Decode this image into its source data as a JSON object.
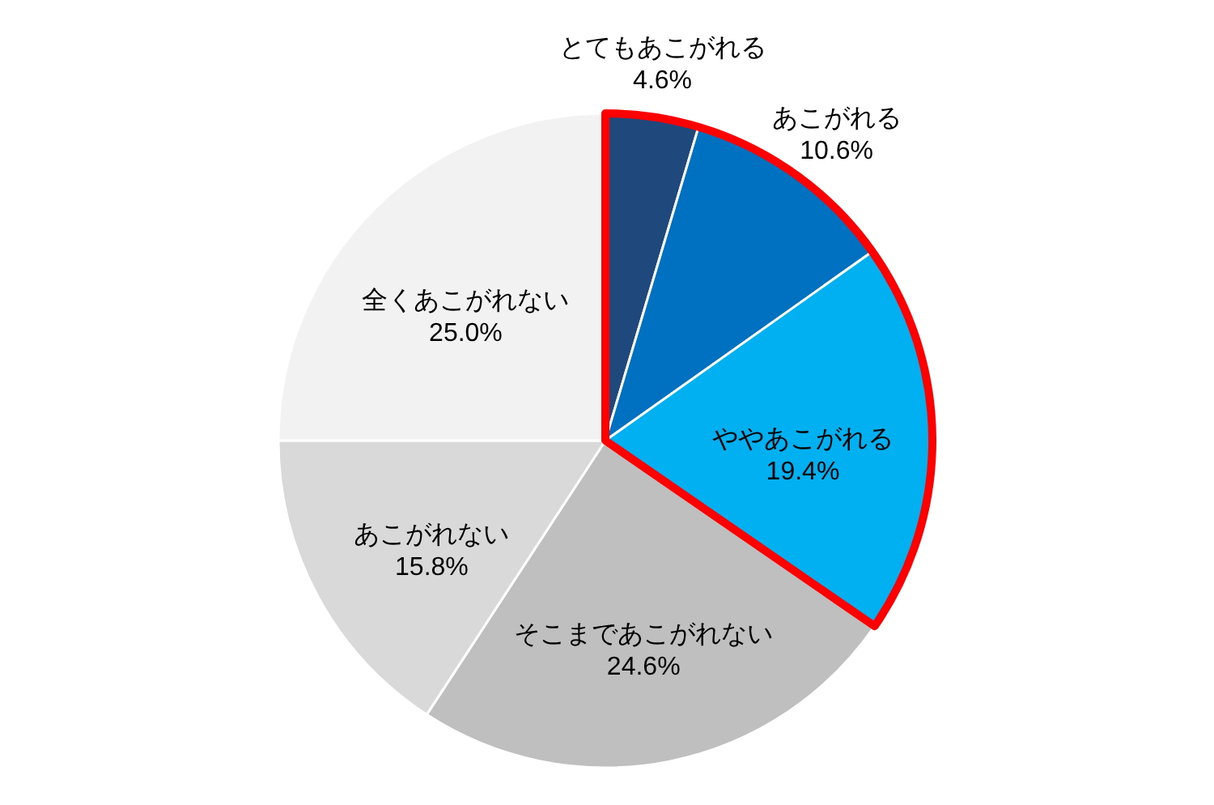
{
  "chart_data": {
    "type": "pie",
    "categories": [
      "とてもあこがれる",
      "あこがれる",
      "ややあこがれる",
      "そこまであこがれない",
      "あこがれない",
      "全くあこがれない"
    ],
    "values": [
      4.6,
      10.6,
      19.4,
      24.6,
      15.8,
      25.0
    ],
    "value_labels": [
      "4.6%",
      "10.6%",
      "19.4%",
      "24.6%",
      "15.8%",
      "25.0%"
    ],
    "colors": [
      "#1f497d",
      "#0070c0",
      "#00b0f0",
      "#bfbfbf",
      "#d9d9d9",
      "#f2f2f2"
    ]
  }
}
